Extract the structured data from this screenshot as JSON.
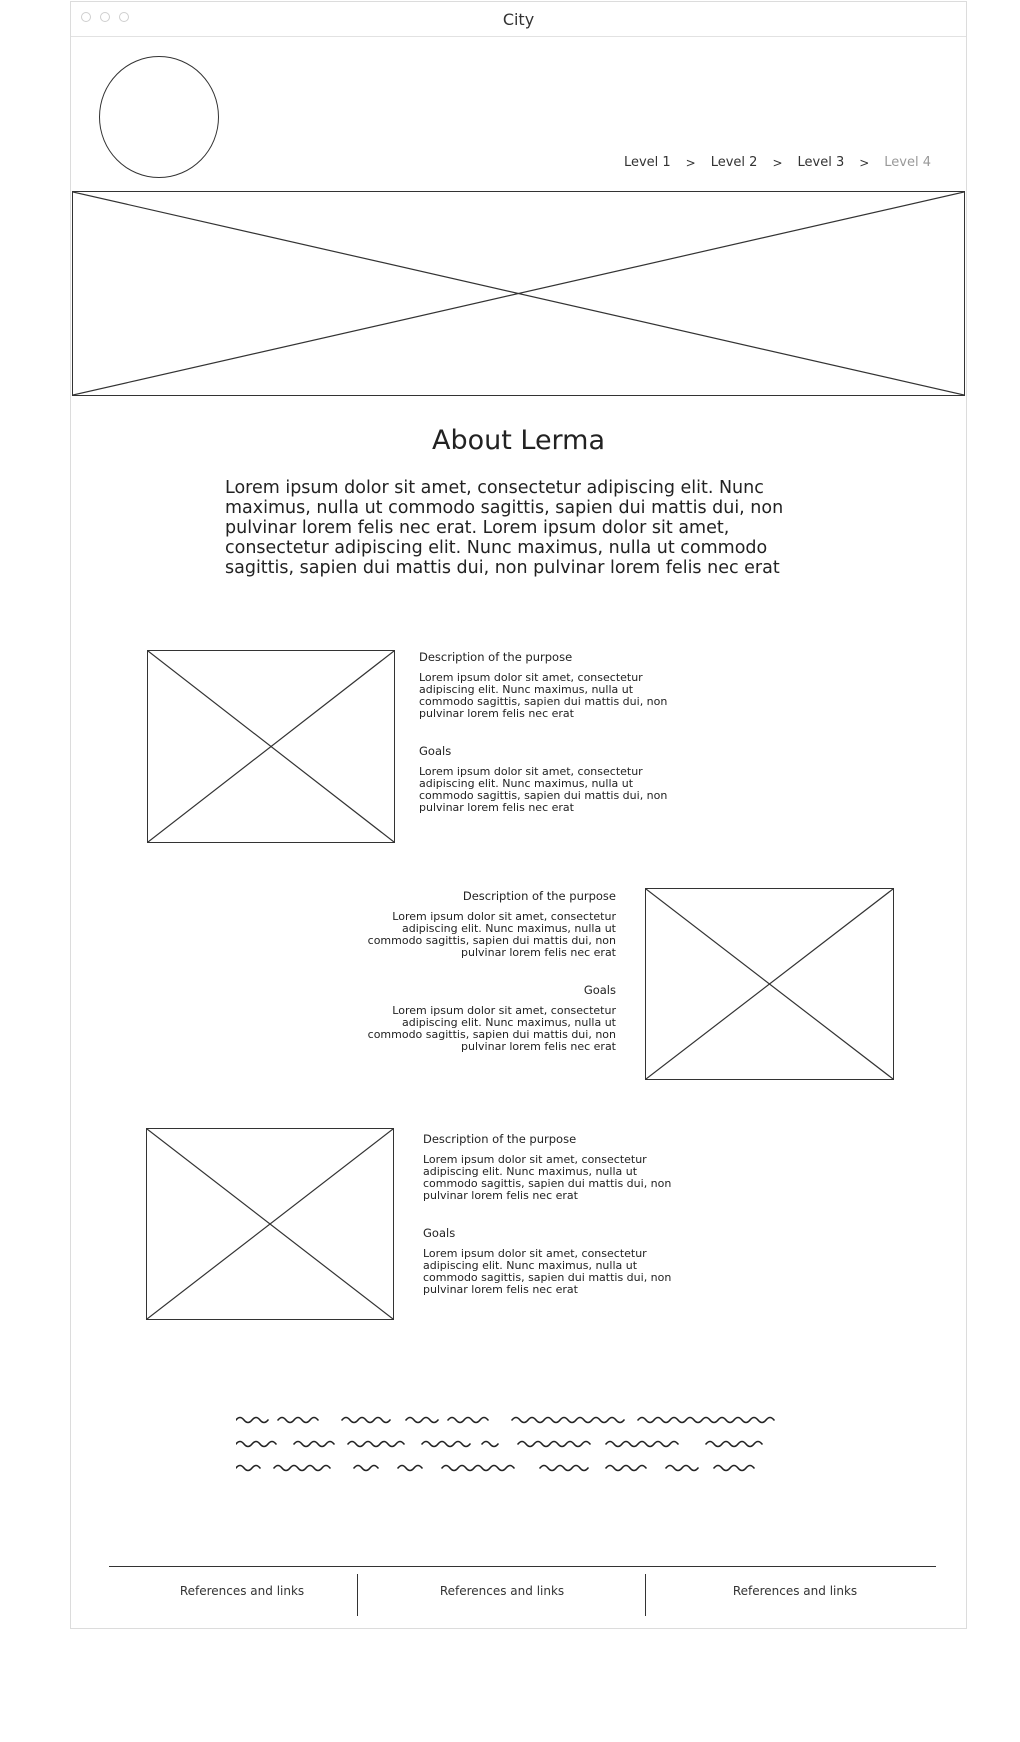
{
  "window": {
    "title": "City"
  },
  "breadcrumb": [
    {
      "label": "Level 1",
      "current": false
    },
    {
      "label": "Level 2",
      "current": false
    },
    {
      "label": "Level 3",
      "current": false
    },
    {
      "label": "Level 4",
      "current": true
    }
  ],
  "breadcrumb_separator": ">",
  "about": {
    "title": "About Lerma",
    "text": "Lorem ipsum dolor sit amet, consectetur adipiscing elit. Nunc maximus, nulla ut commodo sagittis, sapien dui mattis dui, non pulvinar lorem felis nec erat. Lorem ipsum dolor sit amet, consectetur adipiscing elit. Nunc maximus, nulla ut commodo sagittis, sapien dui mattis dui, non pulvinar lorem felis nec erat"
  },
  "features": [
    {
      "heading1": "Description of the purpose",
      "text1": "Lorem ipsum dolor sit amet, consectetur adipiscing elit. Nunc maximus, nulla ut commodo sagittis, sapien dui mattis dui, non pulvinar lorem felis nec erat",
      "heading2": "Goals",
      "text2": "Lorem ipsum dolor sit amet, consectetur adipiscing elit. Nunc maximus, nulla ut commodo sagittis, sapien dui mattis dui, non pulvinar lorem felis nec erat"
    },
    {
      "heading1": "Description of the purpose",
      "text1": "Lorem ipsum dolor sit amet, consectetur adipiscing elit. Nunc maximus, nulla ut commodo sagittis, sapien dui mattis dui, non pulvinar lorem felis nec erat",
      "heading2": "Goals",
      "text2": "Lorem ipsum dolor sit amet, consectetur adipiscing elit. Nunc maximus, nulla ut commodo sagittis, sapien dui mattis dui, non pulvinar lorem felis nec erat"
    },
    {
      "heading1": "Description of the purpose",
      "text1": "Lorem ipsum dolor sit amet, consectetur adipiscing elit. Nunc maximus, nulla ut commodo sagittis, sapien dui mattis dui, non pulvinar lorem felis nec erat",
      "heading2": "Goals",
      "text2": "Lorem ipsum dolor sit amet, consectetur adipiscing elit. Nunc maximus, nulla ut commodo sagittis, sapien dui mattis dui, non pulvinar lorem felis nec erat"
    }
  ],
  "footer": {
    "links": [
      "References and links",
      "References and links",
      "References and links"
    ]
  }
}
